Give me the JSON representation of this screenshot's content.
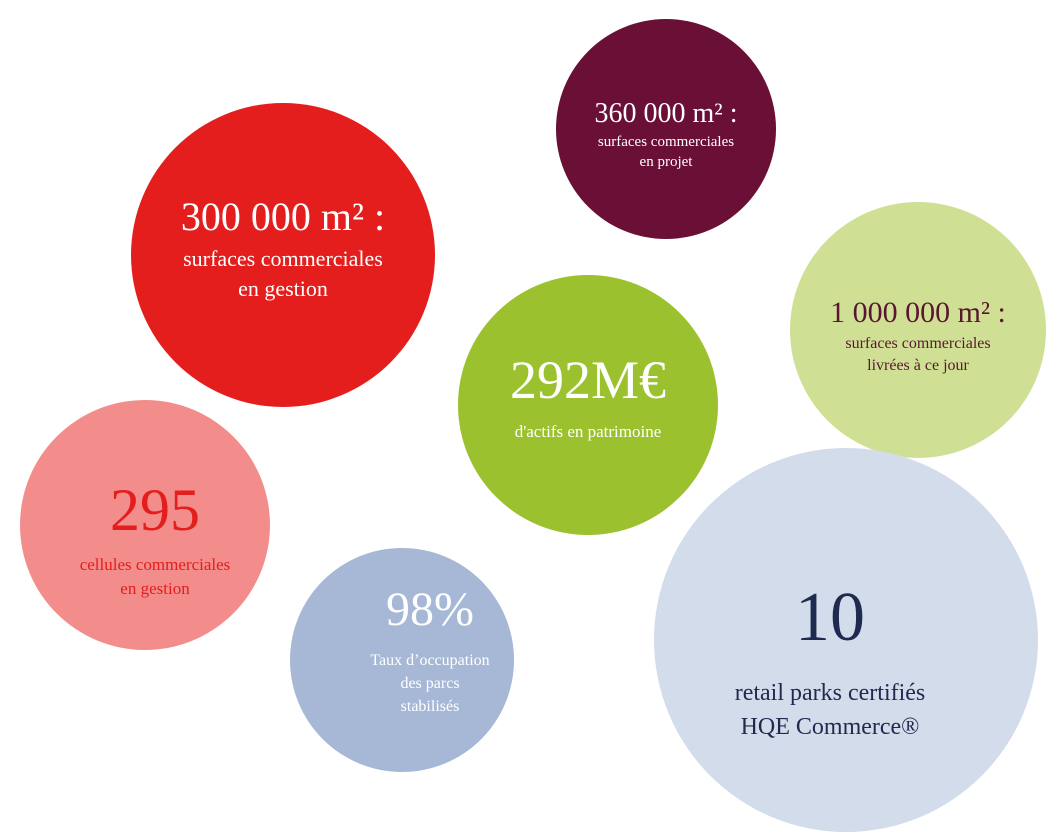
{
  "bubbles": [
    {
      "headline": "300 000 m² :",
      "caption": [
        "surfaces commerciales",
        "en gestion"
      ]
    },
    {
      "headline": "360 000 m² :",
      "caption": [
        "surfaces commerciales",
        "en projet"
      ]
    },
    {
      "headline": "1 000 000 m² :",
      "caption": [
        "surfaces commerciales",
        "livrées à ce jour"
      ]
    },
    {
      "headline": "292M€",
      "caption": [
        "d'actifs en patrimoine"
      ]
    },
    {
      "headline": "295",
      "caption": [
        "cellules commerciales",
        "en gestion"
      ]
    },
    {
      "headline": "98%",
      "caption": [
        "Taux d’occupation",
        "des parcs",
        "stabilisés"
      ]
    },
    {
      "headline": "10",
      "caption": [
        "retail parks certifiés",
        "HQE Commerce®"
      ]
    }
  ]
}
